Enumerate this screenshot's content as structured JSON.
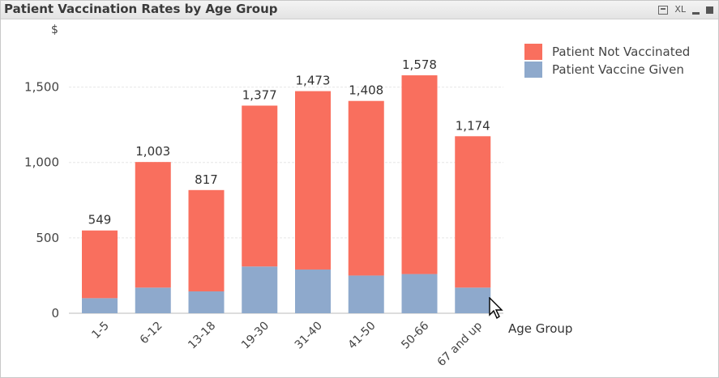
{
  "window": {
    "title": "Patient Vaccination Rates by Age Group",
    "icons": [
      "print-icon",
      "xl-icon",
      "minimize-icon",
      "maximize-icon"
    ],
    "xl_label": "XL"
  },
  "chart_data": {
    "type": "bar",
    "stacked": true,
    "title": "Patient Vaccination Rates by Age Group",
    "xlabel": "Age Group",
    "ylabel": "$",
    "categories": [
      "1-5",
      "6-12",
      "13-18",
      "19-30",
      "31-40",
      "41-50",
      "50-66",
      "67 and up"
    ],
    "series": [
      {
        "name": "Patient Vaccine Given",
        "values": [
          100,
          170,
          145,
          310,
          290,
          250,
          260,
          170
        ],
        "color": "#8ea9cc"
      },
      {
        "name": "Patient Not Vaccinated",
        "values": [
          449,
          833,
          672,
          1067,
          1183,
          1158,
          1318,
          1004
        ],
        "color": "#f96f5e"
      }
    ],
    "totals": [
      549,
      1003,
      817,
      1377,
      1473,
      1408,
      1578,
      1174
    ],
    "total_labels": [
      "549",
      "1,003",
      "817",
      "1,377",
      "1,473",
      "1,408",
      "1,578",
      "1,174"
    ],
    "yticks": [
      0,
      500,
      1000,
      1500
    ],
    "ytick_labels": [
      "0",
      "500",
      "1,000",
      "1,500"
    ],
    "ylim": [
      0,
      1750
    ],
    "grid": true,
    "legend_position": "top-right",
    "legend": [
      {
        "name": "Patient Not Vaccinated",
        "color": "#f96f5e"
      },
      {
        "name": "Patient Vaccine Given",
        "color": "#8ea9cc"
      }
    ]
  }
}
